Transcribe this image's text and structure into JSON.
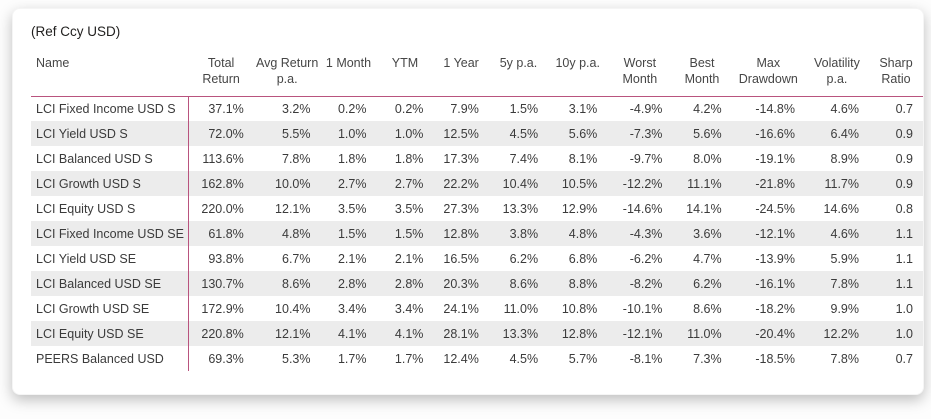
{
  "title": "(Ref Ccy USD)",
  "colors": {
    "accent": "#b9537e",
    "stripe": "#ececec",
    "body_text": "#3b3b3b",
    "header_text": "#464646",
    "title_text": "#201f1e",
    "card_bg": "#ffffff"
  },
  "table": {
    "columns": [
      "Name",
      "Total Return",
      "Avg Return p.a.",
      "1 Month",
      "YTM",
      "1 Year",
      "5y p.a.",
      "10y p.a.",
      "Worst Month",
      "Best Month",
      "Max Drawdown",
      "Volatility p.a.",
      "Sharp Ratio"
    ],
    "rows": [
      [
        "LCI Fixed Income USD S",
        "37.1%",
        "3.2%",
        "0.2%",
        "0.2%",
        "7.9%",
        "1.5%",
        "3.1%",
        "-4.9%",
        "4.2%",
        "-14.8%",
        "4.6%",
        "0.7"
      ],
      [
        "LCI Yield USD S",
        "72.0%",
        "5.5%",
        "1.0%",
        "1.0%",
        "12.5%",
        "4.5%",
        "5.6%",
        "-7.3%",
        "5.6%",
        "-16.6%",
        "6.4%",
        "0.9"
      ],
      [
        "LCI Balanced USD S",
        "113.6%",
        "7.8%",
        "1.8%",
        "1.8%",
        "17.3%",
        "7.4%",
        "8.1%",
        "-9.7%",
        "8.0%",
        "-19.1%",
        "8.9%",
        "0.9"
      ],
      [
        "LCI Growth USD S",
        "162.8%",
        "10.0%",
        "2.7%",
        "2.7%",
        "22.2%",
        "10.4%",
        "10.5%",
        "-12.2%",
        "11.1%",
        "-21.8%",
        "11.7%",
        "0.9"
      ],
      [
        "LCI Equity USD S",
        "220.0%",
        "12.1%",
        "3.5%",
        "3.5%",
        "27.3%",
        "13.3%",
        "12.9%",
        "-14.6%",
        "14.1%",
        "-24.5%",
        "14.6%",
        "0.8"
      ],
      [
        "LCI Fixed Income USD SE",
        "61.8%",
        "4.8%",
        "1.5%",
        "1.5%",
        "12.8%",
        "3.8%",
        "4.8%",
        "-4.3%",
        "3.6%",
        "-12.1%",
        "4.6%",
        "1.1"
      ],
      [
        "LCI Yield USD SE",
        "93.8%",
        "6.7%",
        "2.1%",
        "2.1%",
        "16.5%",
        "6.2%",
        "6.8%",
        "-6.2%",
        "4.7%",
        "-13.9%",
        "5.9%",
        "1.1"
      ],
      [
        "LCI Balanced USD SE",
        "130.7%",
        "8.6%",
        "2.8%",
        "2.8%",
        "20.3%",
        "8.6%",
        "8.8%",
        "-8.2%",
        "6.2%",
        "-16.1%",
        "7.8%",
        "1.1"
      ],
      [
        "LCI Growth USD SE",
        "172.9%",
        "10.4%",
        "3.4%",
        "3.4%",
        "24.1%",
        "11.0%",
        "10.8%",
        "-10.1%",
        "8.6%",
        "-18.2%",
        "9.9%",
        "1.0"
      ],
      [
        "LCI Equity USD SE",
        "220.8%",
        "12.1%",
        "4.1%",
        "4.1%",
        "28.1%",
        "13.3%",
        "12.8%",
        "-12.1%",
        "11.0%",
        "-20.4%",
        "12.2%",
        "1.0"
      ],
      [
        "PEERS Balanced USD",
        "69.3%",
        "5.3%",
        "1.7%",
        "1.7%",
        "12.4%",
        "4.5%",
        "5.7%",
        "-8.1%",
        "7.3%",
        "-18.5%",
        "7.8%",
        "0.7"
      ]
    ]
  }
}
